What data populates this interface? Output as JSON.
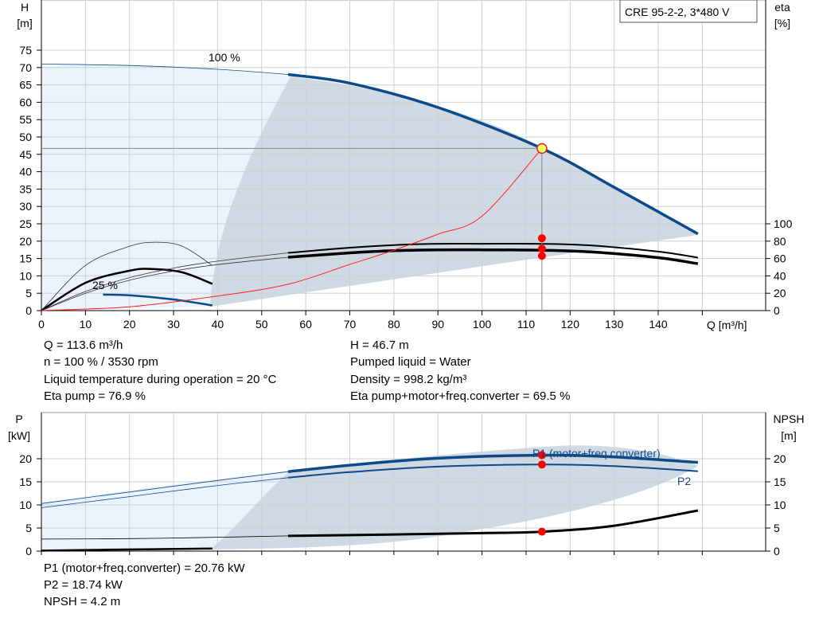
{
  "colors": {
    "curve_blue": "#0c4a8a",
    "red_line": "#ff2020",
    "marker_red": "#ff0000",
    "marker_yellow": "#ffff66",
    "band_light": "#eaf3fc",
    "band_dark": "#cfd9e4",
    "grid": "#d0d0d0"
  },
  "header": {
    "model": "CRE 95-2-2, 3*480 V"
  },
  "chart_data": [
    {
      "type": "line",
      "name": "QH",
      "xlabel": "Q [m³/h]",
      "ylabel": "H",
      "yunit": "[m]",
      "y2label": "eta",
      "y2unit": "[%]",
      "xlim": [
        0,
        160
      ],
      "ylim": [
        0,
        80
      ],
      "y2lim": [
        0,
        100
      ],
      "xticks": [
        "0",
        "10",
        "20",
        "30",
        "40",
        "50",
        "60",
        "70",
        "80",
        "90",
        "100",
        "110",
        "120",
        "130",
        "140"
      ],
      "yticks": [
        "0",
        "5",
        "10",
        "15",
        "20",
        "25",
        "30",
        "35",
        "40",
        "45",
        "50",
        "55",
        "60",
        "65",
        "70",
        "75"
      ],
      "y2ticks": [
        "0",
        "20",
        "40",
        "60",
        "80",
        "100"
      ],
      "curve_labels": [
        "100 %",
        "25 %"
      ],
      "series": [
        {
          "x": [
            0,
            20,
            40,
            56,
            70,
            90,
            113.6,
            130,
            149
          ],
          "values": [
            71,
            70.6,
            69.5,
            68,
            65.5,
            58.5,
            46.7,
            35.5,
            22.1
          ]
        },
        {
          "x": [
            14,
            20,
            30,
            38.8
          ],
          "values": [
            4.6,
            4.4,
            3.2,
            1.5
          ]
        },
        {
          "x": [
            0,
            10,
            20,
            30,
            40,
            56,
            70,
            80,
            90,
            100,
            113.6,
            125,
            140,
            149
          ],
          "values": [
            0,
            22,
            38,
            49,
            57,
            66.5,
            72.5,
            75.5,
            77,
            77,
            76.9,
            75,
            68,
            61
          ]
        },
        {
          "x": [
            0,
            10,
            20,
            30,
            40,
            56,
            70,
            80,
            90,
            100,
            113.6,
            125,
            140,
            149
          ],
          "values": [
            0,
            20,
            35,
            45.5,
            53,
            61.5,
            66.5,
            69,
            70,
            70,
            69.5,
            67.5,
            61,
            54
          ]
        },
        {
          "x": [
            0,
            20,
            40,
            56,
            70,
            80,
            90,
            100,
            113.6
          ],
          "values": [
            0,
            1.1,
            4.2,
            7.6,
            13.3,
            17.4,
            22.0,
            27.2,
            46.7
          ]
        }
      ],
      "operating_point": {
        "x": 113.6,
        "y": 46.7,
        "eta_pump": 76.9,
        "eta_total": 69.5
      }
    },
    {
      "type": "line",
      "name": "Power",
      "ylabel": "P",
      "yunit": "[kW]",
      "y2label": "NPSH",
      "y2unit": "[m]",
      "xlim": [
        0,
        160
      ],
      "ylim": [
        0,
        25
      ],
      "y2lim": [
        0,
        25
      ],
      "yticks": [
        "0",
        "5",
        "10",
        "15",
        "20"
      ],
      "y2ticks": [
        "0",
        "5",
        "10",
        "15",
        "20"
      ],
      "series": [
        {
          "name": "P1 (motor+freq.converter)",
          "x": [
            0,
            20,
            40,
            56,
            70,
            90,
            113.6,
            130,
            149
          ],
          "values": [
            10.3,
            12.8,
            15.3,
            17.2,
            18.6,
            20.1,
            20.76,
            20.4,
            19.2
          ]
        },
        {
          "name": "P2",
          "x": [
            0,
            20,
            40,
            56,
            70,
            90,
            113.6,
            130,
            149
          ],
          "values": [
            9.4,
            11.8,
            14.2,
            15.9,
            17.1,
            18.3,
            18.74,
            18.4,
            17.3
          ]
        },
        {
          "x": [
            0,
            20,
            40,
            56,
            80,
            100,
            113.6,
            130,
            149
          ],
          "values": [
            2.6,
            2.7,
            3.0,
            3.3,
            3.6,
            3.9,
            4.2,
            5.5,
            8.8
          ]
        },
        {
          "x": [
            0,
            14,
            38.8
          ],
          "values": [
            0.1,
            0.3,
            0.55
          ]
        }
      ],
      "operating_point": {
        "x": 113.6,
        "p1": 20.76,
        "p2": 18.74,
        "npsh": 4.2
      }
    }
  ],
  "info_left": [
    "Q = 113.6 m³/h",
    "n = 100 % / 3530 rpm",
    "Liquid temperature during operation = 20 °C",
    "Eta pump = 76.9 %"
  ],
  "info_right": [
    "H = 46.7 m",
    "Pumped liquid = Water",
    "Density = 998.2 kg/m³",
    "Eta pump+motor+freq.converter = 69.5 %"
  ],
  "info_bottom": [
    "P1 (motor+freq.converter) = 20.76 kW",
    "P2 = 18.74 kW",
    "NPSH = 4.2 m"
  ]
}
